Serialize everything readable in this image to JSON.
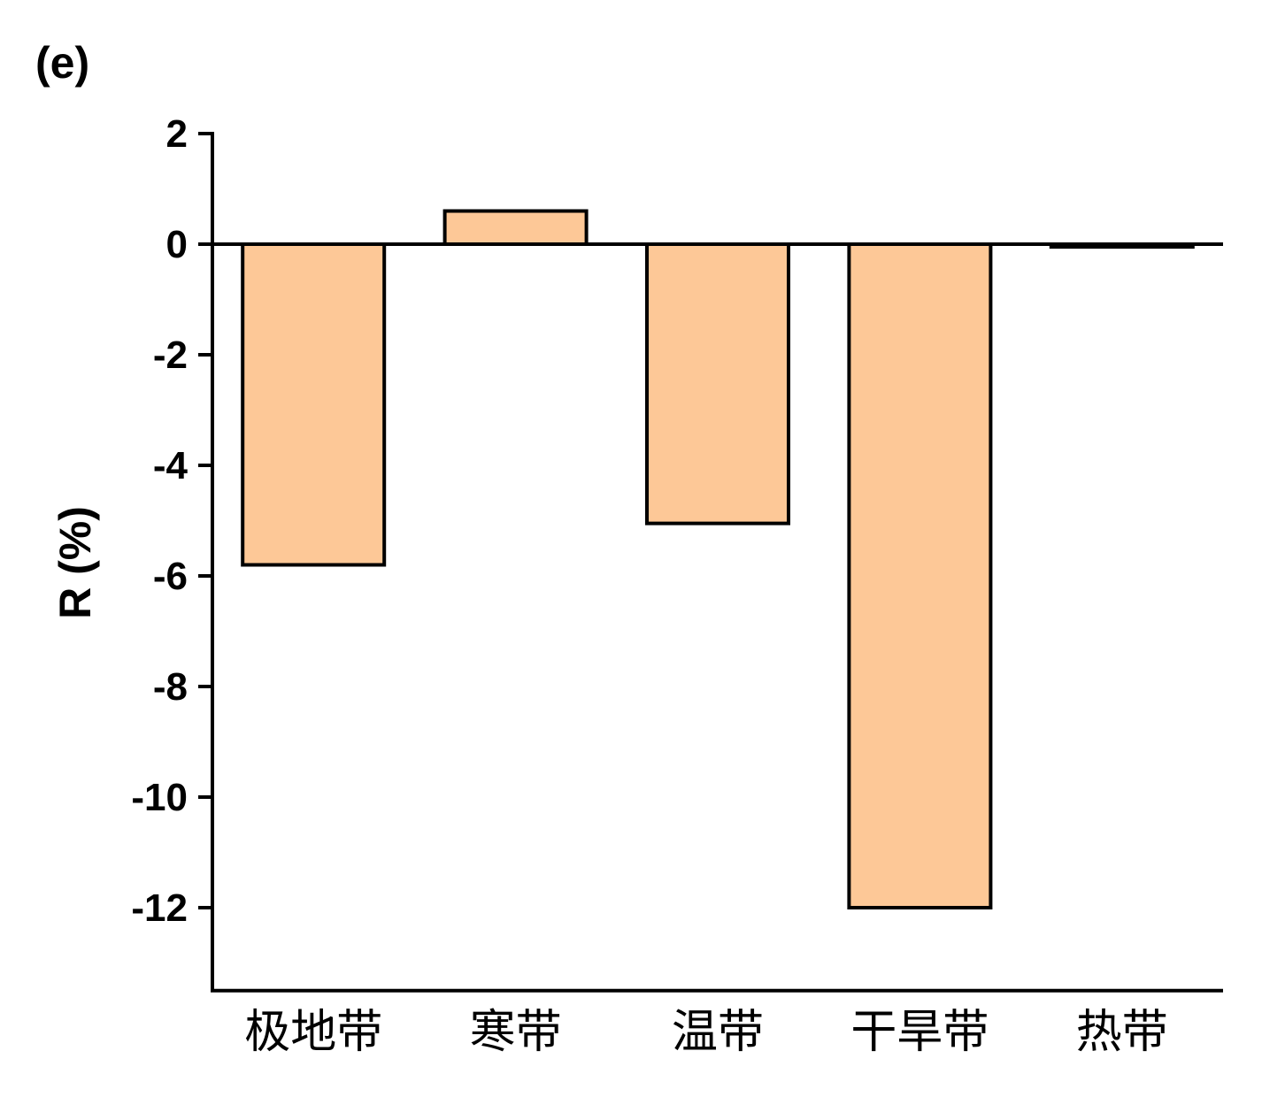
{
  "panel_label": "(e)",
  "chart_data": {
    "type": "bar",
    "categories": [
      "极地带",
      "寒带",
      "温带",
      "干旱带",
      "热带"
    ],
    "values": [
      -5.8,
      0.6,
      -5.05,
      -12.0,
      -0.05
    ],
    "title": "",
    "xlabel": "",
    "ylabel": "R (%)",
    "ylim": [
      -13.5,
      2
    ],
    "yticks": [
      2,
      0,
      -2,
      -4,
      -6,
      -8,
      -10,
      -12
    ],
    "grid": false,
    "legend": "none",
    "bar_color": "#FDC897",
    "edge_color": "#000000"
  }
}
